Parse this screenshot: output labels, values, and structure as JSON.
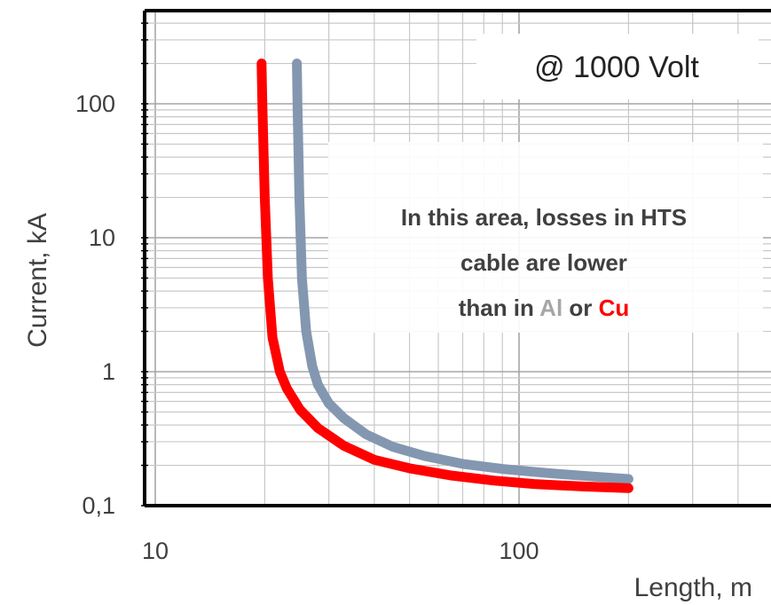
{
  "chart_data": {
    "type": "line",
    "xscale": "log",
    "yscale": "log",
    "xlim": [
      10,
      300
    ],
    "ylim": [
      0.1,
      400
    ],
    "xlabel": "Length, m",
    "ylabel": "Current, kA",
    "xticks": [
      {
        "value": 10,
        "label": "10"
      },
      {
        "value": 100,
        "label": "100"
      }
    ],
    "yticks": [
      {
        "value": 0.1,
        "label": "0,1"
      },
      {
        "value": 1,
        "label": "1"
      },
      {
        "value": 10,
        "label": "10"
      },
      {
        "value": 100,
        "label": "100"
      }
    ],
    "grid": true,
    "annotation": "@ 1000 Volt",
    "note": {
      "line1": "In this area, losses in HTS",
      "line2": "cable are lower",
      "line3_prefix": "than in ",
      "line3_al": "Al",
      "line3_mid": " or ",
      "line3_cu": "Cu"
    },
    "series": [
      {
        "name": "Al",
        "color": "#8497b0",
        "x": [
          24.5,
          24.6,
          24.9,
          25.3,
          26.0,
          27.0,
          28.0,
          30.0,
          33.0,
          38.0,
          45.0,
          55.0,
          70.0,
          90.0,
          120.0,
          160.0,
          200.0
        ],
        "y": [
          200,
          100,
          20,
          5,
          2,
          1.1,
          0.8,
          0.58,
          0.45,
          0.34,
          0.275,
          0.235,
          0.205,
          0.188,
          0.175,
          0.165,
          0.158
        ]
      },
      {
        "name": "Cu",
        "color": "#ff0000",
        "x": [
          19.6,
          19.7,
          20.0,
          20.4,
          21.0,
          22.0,
          23.0,
          25.0,
          28.0,
          33.0,
          40.0,
          50.0,
          65.0,
          85.0,
          110.0,
          150.0,
          200.0
        ],
        "y": [
          200,
          100,
          20,
          5,
          1.8,
          1.0,
          0.75,
          0.52,
          0.38,
          0.28,
          0.22,
          0.19,
          0.168,
          0.154,
          0.145,
          0.139,
          0.135
        ]
      }
    ],
    "colors": {
      "al_text": "#a6a6a6",
      "cu_text": "#ff0000"
    }
  }
}
